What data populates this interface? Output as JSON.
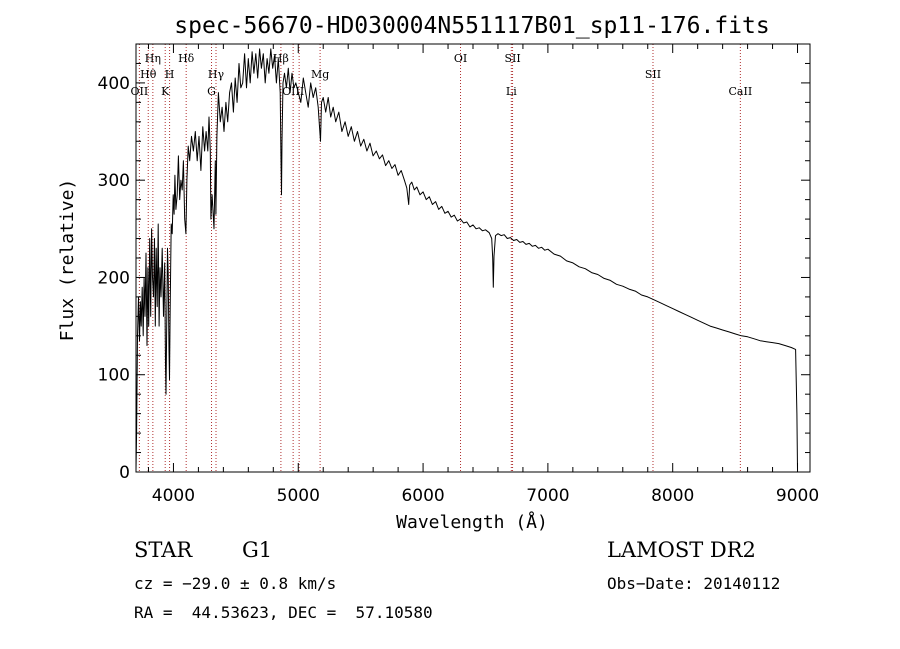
{
  "chart_data": {
    "type": "line",
    "title": "spec-56670-HD030004N551117B01_sp11-176.fits",
    "xlabel": "Wavelength (Å)",
    "ylabel": "Flux (relative)",
    "xlim": [
      3700,
      9100
    ],
    "ylim": [
      0,
      440
    ],
    "xticks": [
      4000,
      5000,
      6000,
      7000,
      8000,
      9000
    ],
    "yticks": [
      0,
      100,
      200,
      300,
      400
    ],
    "grid": false,
    "series": [
      {
        "color": "#000000",
        "points": [
          [
            3700,
            2
          ],
          [
            3705,
            40
          ],
          [
            3712,
            140
          ],
          [
            3720,
            180
          ],
          [
            3728,
            135
          ],
          [
            3735,
            175
          ],
          [
            3742,
            150
          ],
          [
            3750,
            190
          ],
          [
            3758,
            140
          ],
          [
            3765,
            200
          ],
          [
            3772,
            160
          ],
          [
            3780,
            225
          ],
          [
            3788,
            130
          ],
          [
            3795,
            210
          ],
          [
            3802,
            150
          ],
          [
            3810,
            240
          ],
          [
            3818,
            160
          ],
          [
            3825,
            250
          ],
          [
            3832,
            200
          ],
          [
            3840,
            180
          ],
          [
            3848,
            240
          ],
          [
            3855,
            150
          ],
          [
            3862,
            230
          ],
          [
            3870,
            170
          ],
          [
            3878,
            255
          ],
          [
            3885,
            150
          ],
          [
            3892,
            210
          ],
          [
            3900,
            180
          ],
          [
            3910,
            230
          ],
          [
            3920,
            160
          ],
          [
            3930,
            215
          ],
          [
            3936,
            110
          ],
          [
            3940,
            80
          ],
          [
            3946,
            150
          ],
          [
            3952,
            230
          ],
          [
            3958,
            205
          ],
          [
            3964,
            125
          ],
          [
            3968,
            95
          ],
          [
            3974,
            170
          ],
          [
            3982,
            255
          ],
          [
            3990,
            245
          ],
          [
            3998,
            285
          ],
          [
            4005,
            265
          ],
          [
            4012,
            305
          ],
          [
            4020,
            270
          ],
          [
            4030,
            285
          ],
          [
            4040,
            325
          ],
          [
            4050,
            280
          ],
          [
            4060,
            300
          ],
          [
            4070,
            290
          ],
          [
            4080,
            320
          ],
          [
            4090,
            260
          ],
          [
            4100,
            245
          ],
          [
            4108,
            300
          ],
          [
            4118,
            335
          ],
          [
            4130,
            320
          ],
          [
            4145,
            345
          ],
          [
            4160,
            330
          ],
          [
            4175,
            350
          ],
          [
            4190,
            320
          ],
          [
            4205,
            345
          ],
          [
            4220,
            310
          ],
          [
            4235,
            355
          ],
          [
            4250,
            330
          ],
          [
            4262,
            350
          ],
          [
            4275,
            330
          ],
          [
            4285,
            365
          ],
          [
            4295,
            330
          ],
          [
            4300,
            260
          ],
          [
            4310,
            285
          ],
          [
            4325,
            250
          ],
          [
            4335,
            320
          ],
          [
            4340,
            265
          ],
          [
            4348,
            345
          ],
          [
            4360,
            390
          ],
          [
            4375,
            360
          ],
          [
            4390,
            375
          ],
          [
            4405,
            350
          ],
          [
            4420,
            380
          ],
          [
            4435,
            360
          ],
          [
            4450,
            390
          ],
          [
            4465,
            400
          ],
          [
            4480,
            370
          ],
          [
            4495,
            405
          ],
          [
            4510,
            380
          ],
          [
            4525,
            420
          ],
          [
            4540,
            395
          ],
          [
            4555,
            400
          ],
          [
            4570,
            430
          ],
          [
            4585,
            395
          ],
          [
            4600,
            425
          ],
          [
            4615,
            400
          ],
          [
            4630,
            432
          ],
          [
            4645,
            410
          ],
          [
            4660,
            430
          ],
          [
            4675,
            405
          ],
          [
            4690,
            435
          ],
          [
            4705,
            415
          ],
          [
            4720,
            430
          ],
          [
            4735,
            400
          ],
          [
            4750,
            425
          ],
          [
            4765,
            410
          ],
          [
            4780,
            435
          ],
          [
            4795,
            415
          ],
          [
            4810,
            428
          ],
          [
            4825,
            400
          ],
          [
            4840,
            425
          ],
          [
            4855,
            390
          ],
          [
            4862,
            320
          ],
          [
            4866,
            285
          ],
          [
            4870,
            340
          ],
          [
            4878,
            400
          ],
          [
            4890,
            410
          ],
          [
            4905,
            395
          ],
          [
            4920,
            415
          ],
          [
            4935,
            390
          ],
          [
            4950,
            410
          ],
          [
            4965,
            395
          ],
          [
            4980,
            400
          ],
          [
            5000,
            390
          ],
          [
            5020,
            380
          ],
          [
            5040,
            405
          ],
          [
            5060,
            390
          ],
          [
            5080,
            375
          ],
          [
            5100,
            400
          ],
          [
            5120,
            385
          ],
          [
            5140,
            395
          ],
          [
            5160,
            375
          ],
          [
            5170,
            355
          ],
          [
            5178,
            340
          ],
          [
            5186,
            380
          ],
          [
            5200,
            385
          ],
          [
            5220,
            370
          ],
          [
            5240,
            385
          ],
          [
            5260,
            365
          ],
          [
            5280,
            375
          ],
          [
            5300,
            360
          ],
          [
            5325,
            370
          ],
          [
            5350,
            350
          ],
          [
            5375,
            360
          ],
          [
            5400,
            345
          ],
          [
            5425,
            355
          ],
          [
            5450,
            340
          ],
          [
            5475,
            350
          ],
          [
            5500,
            335
          ],
          [
            5525,
            342
          ],
          [
            5550,
            330
          ],
          [
            5575,
            338
          ],
          [
            5600,
            325
          ],
          [
            5625,
            330
          ],
          [
            5650,
            322
          ],
          [
            5675,
            326
          ],
          [
            5700,
            315
          ],
          [
            5725,
            320
          ],
          [
            5750,
            312
          ],
          [
            5775,
            316
          ],
          [
            5800,
            305
          ],
          [
            5825,
            310
          ],
          [
            5850,
            300
          ],
          [
            5870,
            292
          ],
          [
            5885,
            275
          ],
          [
            5893,
            295
          ],
          [
            5910,
            298
          ],
          [
            5930,
            290
          ],
          [
            5950,
            293
          ],
          [
            5975,
            285
          ],
          [
            6000,
            288
          ],
          [
            6025,
            280
          ],
          [
            6050,
            283
          ],
          [
            6075,
            275
          ],
          [
            6100,
            278
          ],
          [
            6125,
            270
          ],
          [
            6150,
            273
          ],
          [
            6175,
            266
          ],
          [
            6200,
            268
          ],
          [
            6225,
            262
          ],
          [
            6250,
            264
          ],
          [
            6275,
            258
          ],
          [
            6300,
            260
          ],
          [
            6325,
            256
          ],
          [
            6350,
            257
          ],
          [
            6375,
            252
          ],
          [
            6400,
            254
          ],
          [
            6425,
            250
          ],
          [
            6450,
            251
          ],
          [
            6475,
            248
          ],
          [
            6500,
            249
          ],
          [
            6530,
            246
          ],
          [
            6550,
            240
          ],
          [
            6558,
            220
          ],
          [
            6563,
            190
          ],
          [
            6568,
            222
          ],
          [
            6580,
            243
          ],
          [
            6600,
            245
          ],
          [
            6625,
            243
          ],
          [
            6650,
            244
          ],
          [
            6675,
            240
          ],
          [
            6700,
            241
          ],
          [
            6725,
            238
          ],
          [
            6750,
            239
          ],
          [
            6775,
            236
          ],
          [
            6800,
            237
          ],
          [
            6825,
            234
          ],
          [
            6850,
            235
          ],
          [
            6875,
            232
          ],
          [
            6900,
            233
          ],
          [
            6925,
            230
          ],
          [
            6950,
            231
          ],
          [
            6975,
            228
          ],
          [
            7000,
            229
          ],
          [
            7050,
            224
          ],
          [
            7100,
            222
          ],
          [
            7150,
            217
          ],
          [
            7200,
            215
          ],
          [
            7250,
            211
          ],
          [
            7300,
            209
          ],
          [
            7350,
            205
          ],
          [
            7400,
            203
          ],
          [
            7450,
            199
          ],
          [
            7500,
            197
          ],
          [
            7550,
            193
          ],
          [
            7600,
            191
          ],
          [
            7650,
            188
          ],
          [
            7700,
            186
          ],
          [
            7750,
            182
          ],
          [
            7800,
            180
          ],
          [
            7850,
            177
          ],
          [
            7900,
            174
          ],
          [
            7950,
            171
          ],
          [
            8000,
            168
          ],
          [
            8050,
            165
          ],
          [
            8100,
            162
          ],
          [
            8150,
            159
          ],
          [
            8200,
            156
          ],
          [
            8250,
            153
          ],
          [
            8300,
            150
          ],
          [
            8350,
            148
          ],
          [
            8400,
            146
          ],
          [
            8450,
            144
          ],
          [
            8500,
            142
          ],
          [
            8550,
            140
          ],
          [
            8600,
            139
          ],
          [
            8650,
            137
          ],
          [
            8700,
            135
          ],
          [
            8750,
            134
          ],
          [
            8800,
            133
          ],
          [
            8850,
            132
          ],
          [
            8900,
            130
          ],
          [
            8950,
            128
          ],
          [
            8985,
            126
          ],
          [
            8995,
            60
          ],
          [
            9000,
            2
          ]
        ]
      }
    ],
    "spectral_lines": [
      {
        "label": "Hη",
        "wavelength": 3835,
        "tier": 1
      },
      {
        "label": "Hθ",
        "wavelength": 3798,
        "tier": 2
      },
      {
        "label": "OII",
        "wavelength": 3727,
        "tier": 3
      },
      {
        "label": "H",
        "wavelength": 3969,
        "tier": 2
      },
      {
        "label": "K",
        "wavelength": 3934,
        "tier": 3
      },
      {
        "label": "Hδ",
        "wavelength": 4102,
        "tier": 1
      },
      {
        "label": "Hγ",
        "wavelength": 4341,
        "tier": 2
      },
      {
        "label": "G",
        "wavelength": 4305,
        "tier": 3
      },
      {
        "label": "Hβ",
        "wavelength": 4861,
        "tier": 1
      },
      {
        "label": "OIII",
        "wavelength": 4959,
        "tier": 3
      },
      {
        "label": "",
        "wavelength": 5007,
        "tier": 0
      },
      {
        "label": "Mg",
        "wavelength": 5175,
        "tier": 2
      },
      {
        "label": "OI",
        "wavelength": 6300,
        "tier": 1
      },
      {
        "label": "SII",
        "wavelength": 6717,
        "tier": 1
      },
      {
        "label": "Li",
        "wavelength": 6707,
        "tier": 3
      },
      {
        "label": "SII",
        "wavelength": 7842,
        "tier": 2
      },
      {
        "label": "CaII",
        "wavelength": 8542,
        "tier": 3
      }
    ]
  },
  "info": {
    "object_class": "STAR",
    "subclass": "G1",
    "survey": "LAMOST DR2",
    "cz": "cz = −29.0 ± 0.8 km/s",
    "obs_date": "Obs−Date: 20140112",
    "coords": "RA =  44.53623, DEC =  57.10580"
  }
}
